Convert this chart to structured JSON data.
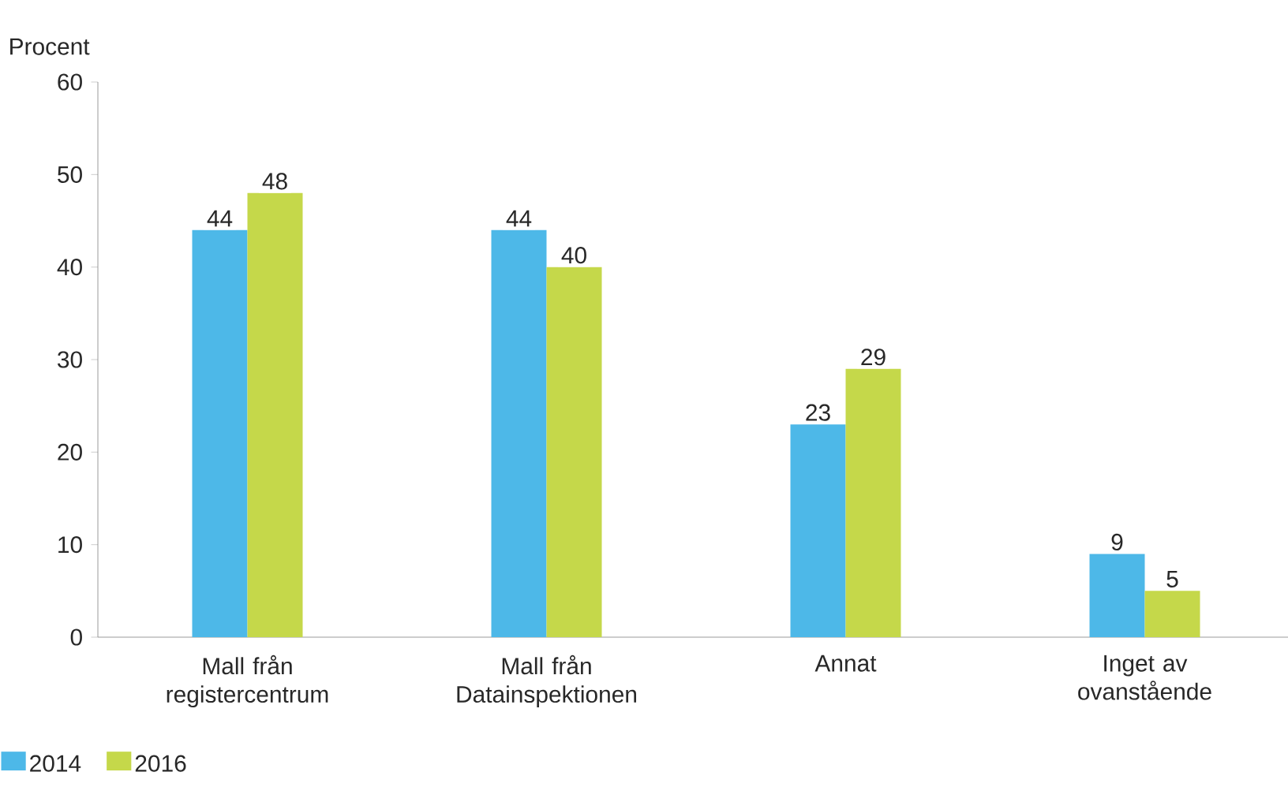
{
  "chart_data": {
    "type": "bar",
    "ylabel": "Procent",
    "categories": [
      "Mall från registercentrum",
      "Mall från Datainspektionen",
      "Annat",
      "Inget av ovanstående"
    ],
    "series": [
      {
        "name": "2014",
        "color": "#4db8e8",
        "values": [
          44,
          44,
          23,
          9
        ]
      },
      {
        "name": "2016",
        "color": "#c5d84a",
        "values": [
          48,
          40,
          29,
          5
        ]
      }
    ],
    "ylim": [
      0,
      60
    ],
    "yticks": [
      0,
      10,
      20,
      30,
      40,
      50,
      60
    ],
    "data_labels": true,
    "legend": "bottom left",
    "grid": false
  }
}
